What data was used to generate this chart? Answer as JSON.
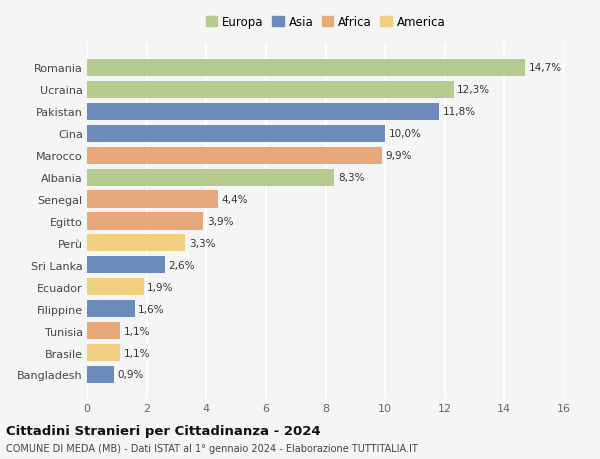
{
  "countries": [
    "Romania",
    "Ucraina",
    "Pakistan",
    "Cina",
    "Marocco",
    "Albania",
    "Senegal",
    "Egitto",
    "Perù",
    "Sri Lanka",
    "Ecuador",
    "Filippine",
    "Tunisia",
    "Brasile",
    "Bangladesh"
  ],
  "values": [
    14.7,
    12.3,
    11.8,
    10.0,
    9.9,
    8.3,
    4.4,
    3.9,
    3.3,
    2.6,
    1.9,
    1.6,
    1.1,
    1.1,
    0.9
  ],
  "labels": [
    "14,7%",
    "12,3%",
    "11,8%",
    "10,0%",
    "9,9%",
    "8,3%",
    "4,4%",
    "3,9%",
    "3,3%",
    "2,6%",
    "1,9%",
    "1,6%",
    "1,1%",
    "1,1%",
    "0,9%"
  ],
  "continents": [
    "Europa",
    "Europa",
    "Asia",
    "Asia",
    "Africa",
    "Europa",
    "Africa",
    "Africa",
    "America",
    "Asia",
    "America",
    "Asia",
    "Africa",
    "America",
    "Asia"
  ],
  "continent_colors": {
    "Europa": "#b5cc8e",
    "Asia": "#6b8cba",
    "Africa": "#e8a87c",
    "America": "#f0d080"
  },
  "legend_order": [
    "Europa",
    "Asia",
    "Africa",
    "America"
  ],
  "title": "Cittadini Stranieri per Cittadinanza - 2024",
  "subtitle": "COMUNE DI MEDA (MB) - Dati ISTAT al 1° gennaio 2024 - Elaborazione TUTTITALIA.IT",
  "xlim": [
    0,
    16
  ],
  "xticks": [
    0,
    2,
    4,
    6,
    8,
    10,
    12,
    14,
    16
  ],
  "background_color": "#f5f5f5",
  "grid_color": "#ffffff",
  "bar_height": 0.78
}
